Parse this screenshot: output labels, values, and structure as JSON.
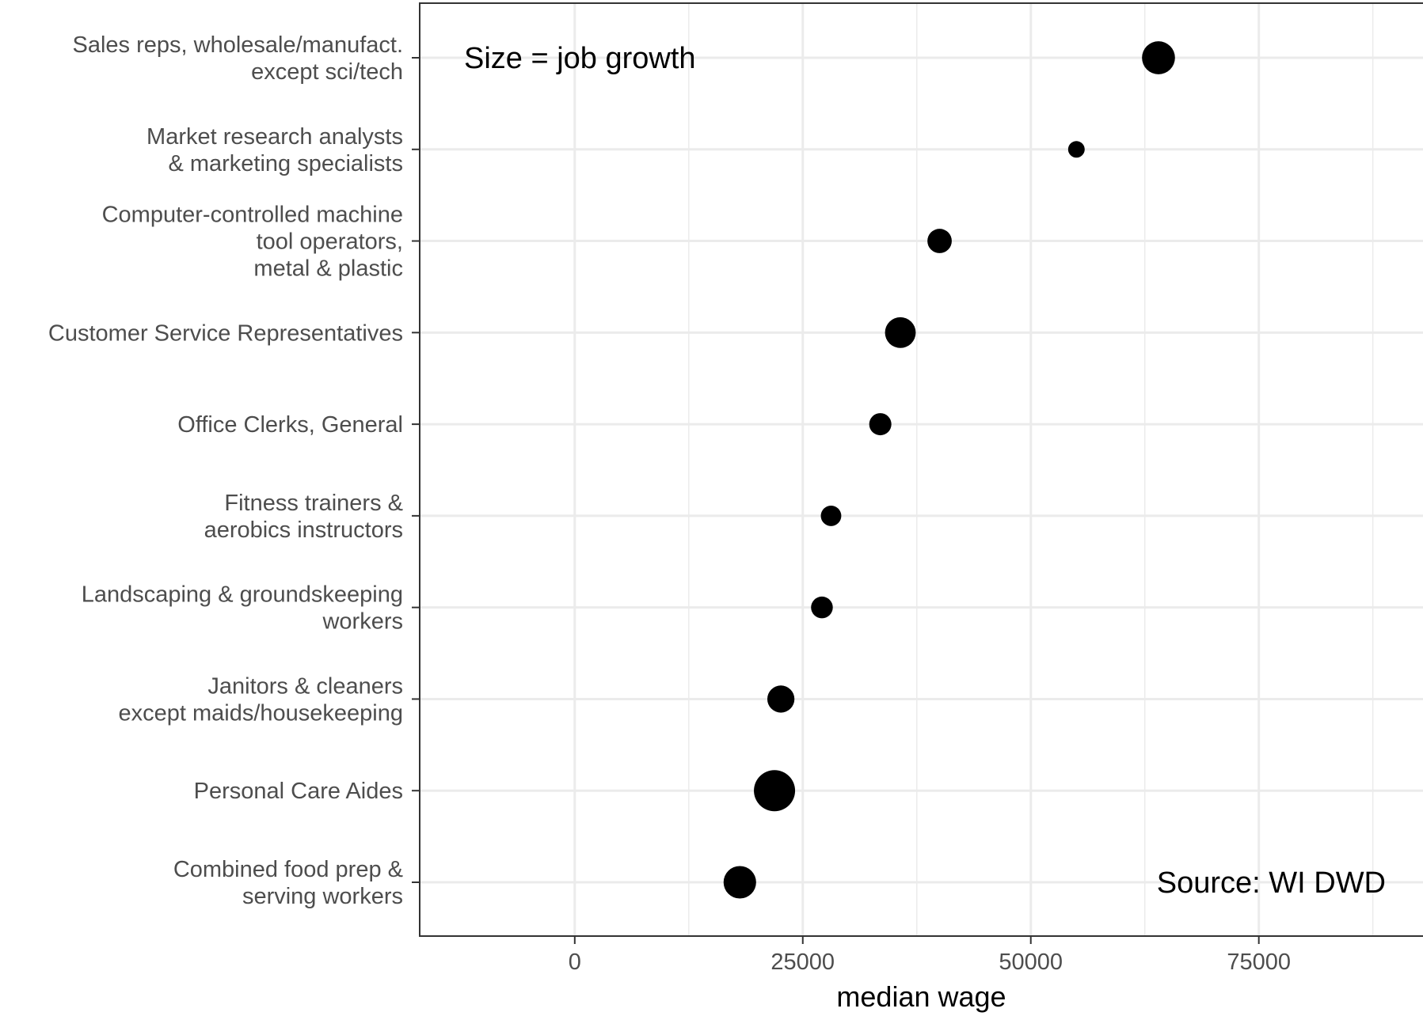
{
  "chart_data": {
    "type": "scatter",
    "xlabel": "median wage",
    "ylabel": "",
    "xlim": [
      -17000,
      93000
    ],
    "x_ticks": [
      0,
      25000,
      50000,
      75000
    ],
    "x_tick_labels": [
      "0",
      "25000",
      "50000",
      "75000"
    ],
    "grid": true,
    "size_encodes": "job growth",
    "categories": [
      [
        "Sales reps, wholesale/manufact.",
        "except sci/tech"
      ],
      [
        "Market research analysts",
        "& marketing specialists"
      ],
      [
        "Computer-controlled machine",
        "tool operators,",
        "metal & plastic"
      ],
      [
        "Customer Service Representatives"
      ],
      [
        "Office Clerks, General"
      ],
      [
        "Fitness trainers &",
        "aerobics instructors"
      ],
      [
        "Landscaping & groundskeeping",
        "workers"
      ],
      [
        "Janitors & cleaners",
        "except maids/housekeeping"
      ],
      [
        "Personal Care Aides"
      ],
      [
        "Combined food prep &",
        "serving workers"
      ]
    ],
    "series": [
      {
        "x": [
          64000,
          55000,
          40000,
          35700,
          33500,
          28100,
          27100,
          22600,
          21900,
          18100
        ],
        "size": [
          0.55,
          0.05,
          0.22,
          0.45,
          0.16,
          0.12,
          0.15,
          0.31,
          1.0,
          0.53
        ]
      }
    ],
    "annotations": [
      {
        "text": "Size = job growth",
        "position": "top-left"
      },
      {
        "text": "Source: WI DWD",
        "position": "bottom-right"
      }
    ],
    "colors": {
      "points": "#000000",
      "grid": "#ebebeb",
      "panel_border": "#333333",
      "tick_text": "#4d4d4d"
    }
  }
}
